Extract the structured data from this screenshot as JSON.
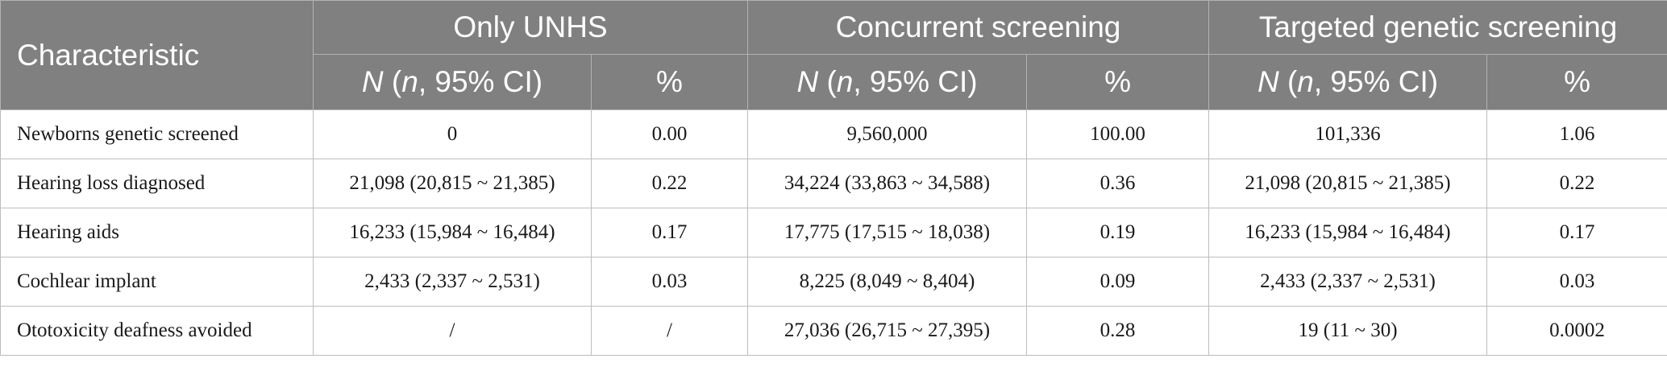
{
  "header": {
    "characteristic": "Characteristic",
    "groups": [
      "Only UNHS",
      "Concurrent screening",
      "Targeted genetic screening"
    ],
    "sub_n": "N",
    "sub_n_paren_open": " (",
    "sub_n_italic": "n",
    "sub_n_rest": ", 95% CI)",
    "sub_pct": "%"
  },
  "rows": [
    {
      "label": "Newborns genetic screened",
      "cells": [
        "0",
        "0.00",
        "9,560,000",
        "100.00",
        "101,336",
        "1.06"
      ]
    },
    {
      "label": "Hearing loss diagnosed",
      "cells": [
        "21,098 (20,815 ~ 21,385)",
        "0.22",
        "34,224 (33,863 ~ 34,588)",
        "0.36",
        "21,098 (20,815 ~ 21,385)",
        "0.22"
      ]
    },
    {
      "label": "Hearing aids",
      "cells": [
        "16,233 (15,984 ~ 16,484)",
        "0.17",
        "17,775 (17,515 ~ 18,038)",
        "0.19",
        "16,233 (15,984 ~ 16,484)",
        "0.17"
      ]
    },
    {
      "label": "Cochlear implant",
      "cells": [
        "2,433 (2,337 ~ 2,531)",
        "0.03",
        "8,225 (8,049 ~ 8,404)",
        "0.09",
        "2,433 (2,337 ~ 2,531)",
        "0.03"
      ]
    },
    {
      "label": "Ototoxicity deafness avoided",
      "cells": [
        "/",
        "/",
        "27,036 (26,715 ~ 27,395)",
        "0.28",
        "19 (11 ~ 30)",
        "0.0002"
      ]
    }
  ]
}
